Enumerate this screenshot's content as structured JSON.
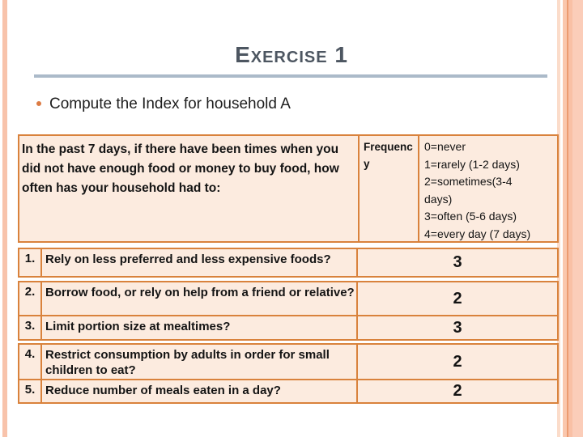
{
  "slide": {
    "title": "Exercise 1",
    "bullet": "Compute the Index for household A"
  },
  "table": {
    "header": {
      "question": "In the past 7 days, if there have been times when you did not have enough food or money to buy food, how often has your household had to:",
      "frequency_label": "Frequency",
      "scale": [
        "0=never",
        "1=rarely (1-2 days)",
        "2=sometimes(3-4 days)",
        "3=often (5-6 days)",
        "4=every day (7 days)"
      ]
    },
    "rows": [
      {
        "num": "1.",
        "question": "Rely on less preferred and less expensive foods?",
        "value": "3"
      },
      {
        "num": "2.",
        "question": "Borrow food, or rely on help from a friend or relative?",
        "value": "2"
      },
      {
        "num": "3.",
        "question": "Limit portion size at mealtimes?",
        "value": "3"
      },
      {
        "num": "4.",
        "question": "Restrict consumption by adults in order for small children to eat?",
        "value": "2"
      },
      {
        "num": "5.",
        "question": "Reduce number of meals eaten in a day?",
        "value": "2"
      }
    ]
  },
  "colors": {
    "table_border": "#d9823c",
    "cell_background": "#fcebdf",
    "title_text": "#4d5661",
    "title_rule": "#abbac9",
    "bullet_ring": "#dc7b44",
    "side_stripe": "#f8c3ab"
  }
}
